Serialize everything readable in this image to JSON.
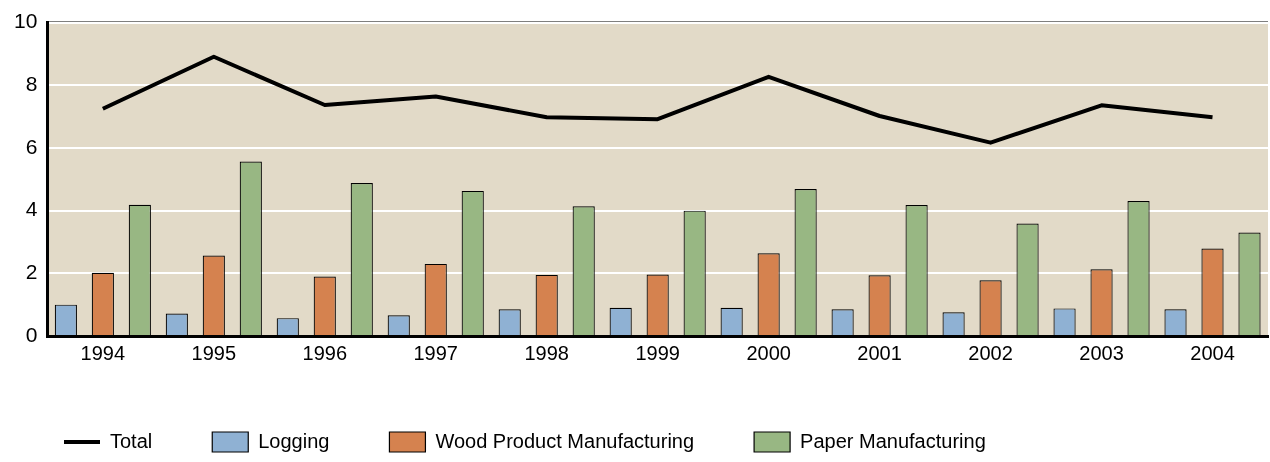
{
  "chart_data": {
    "type": "bar",
    "categories": [
      "1994",
      "1995",
      "1996",
      "1997",
      "1998",
      "1999",
      "2000",
      "2001",
      "2002",
      "2003",
      "2004"
    ],
    "series": [
      {
        "name": "Logging",
        "color": "#8fb1d3",
        "values": [
          1.0,
          0.72,
          0.57,
          0.66,
          0.85,
          0.9,
          0.9,
          0.85,
          0.76,
          0.88,
          0.85
        ]
      },
      {
        "name": "Wood Product Manufacturing",
        "color": "#d5824f",
        "values": [
          2.02,
          2.57,
          1.9,
          2.3,
          1.95,
          1.96,
          2.64,
          1.94,
          1.78,
          2.13,
          2.79
        ]
      },
      {
        "name": "Paper Manufacturing",
        "color": "#98b783",
        "values": [
          4.19,
          5.57,
          4.88,
          4.63,
          4.14,
          4.0,
          4.69,
          4.18,
          3.59,
          4.31,
          3.3
        ]
      },
      {
        "name": "Total",
        "type": "line",
        "color": "#000000",
        "values": [
          7.25,
          8.91,
          7.37,
          7.64,
          6.98,
          6.92,
          8.27,
          7.02,
          6.17,
          7.36,
          6.98
        ]
      }
    ],
    "ylim": [
      0,
      10
    ],
    "yticks": [
      0,
      2,
      4,
      6,
      8,
      10
    ],
    "grid": "y",
    "legend": "bottom",
    "marker": "none",
    "line_style": "solid"
  }
}
